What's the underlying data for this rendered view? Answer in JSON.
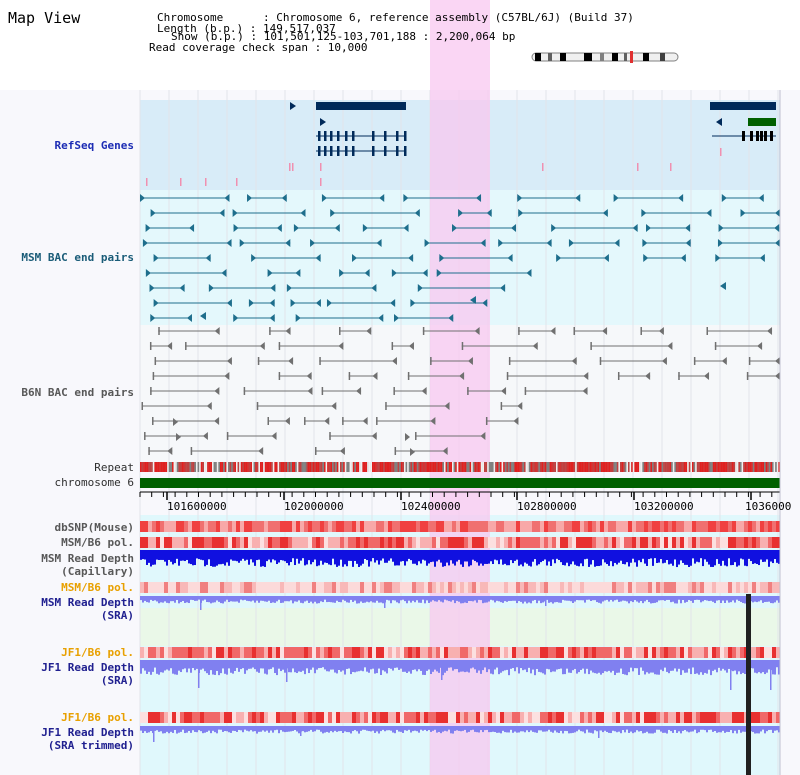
{
  "header": {
    "title": "Map View",
    "info_lines": [
      "Chromosome      : Chromosome 6, reference assembly (C57BL/6J) (Build 37)",
      "Length (b.p.) : 149,517,037",
      "Show (b.p.) : 101,501,125-103,701,188 : 2,200,064 bp",
      "Read coverage check span : 10,000"
    ]
  },
  "tracks": {
    "refseq": "RefSeq Genes",
    "msm_bac": "MSM BAC end pairs",
    "b6n_bac": "B6N BAC end pairs",
    "repeat": "Repeat",
    "chromosome": "chromosome 6",
    "dbsnp": "dbSNP(Mouse)",
    "msm_b6_pol_1": "MSM/B6 pol.",
    "msm_read_depth_cap_1": "MSM Read Depth",
    "msm_read_depth_cap_2": "(Capillary)",
    "msm_b6_pol_2": "MSM/B6 pol.",
    "msm_read_depth_sra_1": "MSM Read Depth",
    "msm_read_depth_sra_2": "(SRA)",
    "jf1_b6_pol_1": "JF1/B6 pol.",
    "jf1_read_depth_sra_1": "JF1 Read Depth",
    "jf1_read_depth_sra_2": "(SRA)",
    "jf1_b6_pol_2": "JF1/B6 pol.",
    "jf1_read_depth_trim_1": "JF1 Read Depth",
    "jf1_read_depth_trim_2": "(SRA trimmed)"
  },
  "axis": {
    "ticks": [
      "101600000",
      "102000000",
      "102400000",
      "102800000",
      "103200000",
      "1036000"
    ]
  },
  "colors": {
    "refseq_bg": "#d8ecf8",
    "bac_bg": "#e4f8fc",
    "b6n_bg": "#f8f8fc",
    "highlight": "#f8c8f0",
    "gene_block": "#002a5a",
    "gene_green": "#006000",
    "msm_pair": "#1e6e8c",
    "b6n_pair": "#707070",
    "chrom_bar": "#006000",
    "depth_blue": "#1010e0",
    "depth_light": "#8080f0"
  }
}
